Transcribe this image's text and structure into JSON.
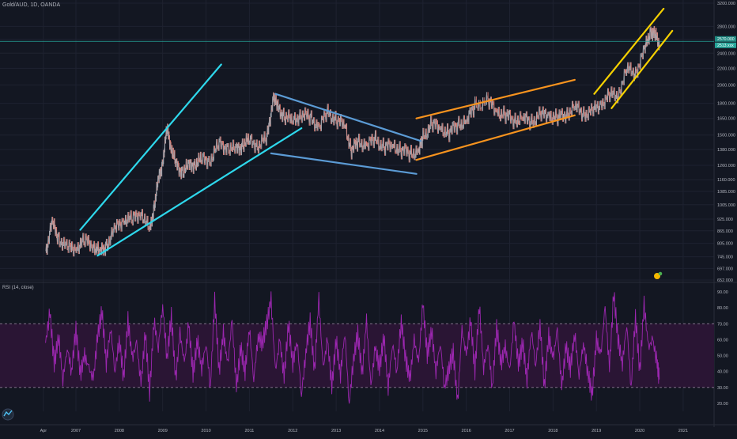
{
  "header": {
    "symbol_title": "Gold/AUD, 1D, OANDA"
  },
  "rsi_panel": {
    "title": "RSI (14, close)"
  },
  "colors": {
    "background": "#131722",
    "grid": "#1e2230",
    "axis_text": "#b2b5be",
    "candle_up": "#a5a9b1",
    "candle_down": "#e07a6f",
    "price_line": "#26a69a",
    "channel_cyan": "#2ed8ec",
    "channel_steel": "#5b9bd5",
    "channel_orange": "#f7931e",
    "channel_yellow": "#f5d000",
    "rsi_line": "#9c27b0",
    "rsi_band": "#2a1534",
    "rsi_band_border": "#8d7c95"
  },
  "icons": {
    "chart_badge": "tradingview-idea-icon",
    "logo": "tradingview-logo-icon"
  },
  "chart_data": [
    {
      "type": "line",
      "title": "Gold/AUD, 1D, OANDA",
      "y_scale": "log",
      "ylim": [
        652,
        3200
      ],
      "y_ticks": [
        "3200.000",
        "2800.000",
        "2600.000",
        "2400.000",
        "2200.000",
        "2000.000",
        "1800.000",
        "1650.000",
        "1500.000",
        "1380.000",
        "1260.000",
        "1160.000",
        "1085.000",
        "1005.000",
        "925.000",
        "865.000",
        "805.000",
        "745.000",
        "697.000",
        "652.000"
      ],
      "x_ticks": [
        "Apr",
        "2007",
        "2008",
        "2009",
        "2010",
        "2011",
        "2012",
        "2013",
        "2014",
        "2015",
        "2016",
        "2017",
        "2018",
        "2019",
        "2020",
        "2021"
      ],
      "current_price_labels": [
        "2570.000",
        "2513.xxx"
      ],
      "series": [
        {
          "x": [
            2006.3,
            2006.45,
            2006.6,
            2006.8,
            2007.0,
            2007.2,
            2007.4,
            2007.55,
            2007.7,
            2007.9,
            2008.1,
            2008.3,
            2008.5,
            2008.7,
            2008.8,
            2008.9,
            2009.0,
            2009.1,
            2009.2,
            2009.3,
            2009.45,
            2009.6,
            2009.75,
            2009.9,
            2010.1,
            2010.3,
            2010.5,
            2010.7,
            2010.85,
            2011.0,
            2011.2,
            2011.4,
            2011.55,
            2011.65,
            2011.8,
            2012.0,
            2012.2,
            2012.4,
            2012.6,
            2012.8,
            2013.0,
            2013.2,
            2013.35,
            2013.5,
            2013.7,
            2013.9,
            2014.1,
            2014.3,
            2014.5,
            2014.7,
            2014.9,
            2015.0,
            2015.2,
            2015.4,
            2015.6,
            2015.8,
            2016.0,
            2016.2,
            2016.5,
            2016.7,
            2016.9,
            2017.1,
            2017.3,
            2017.5,
            2017.7,
            2017.9,
            2018.1,
            2018.3,
            2018.5,
            2018.7,
            2018.9,
            2019.1,
            2019.3,
            2019.5,
            2019.7,
            2019.9,
            2020.1,
            2020.25,
            2020.35,
            2020.45
          ],
          "y": [
            770,
            905,
            830,
            780,
            790,
            815,
            800,
            760,
            800,
            870,
            930,
            920,
            970,
            860,
            1000,
            1150,
            1300,
            1550,
            1400,
            1260,
            1220,
            1250,
            1280,
            1300,
            1310,
            1420,
            1400,
            1370,
            1430,
            1450,
            1420,
            1470,
            1880,
            1750,
            1680,
            1620,
            1700,
            1650,
            1580,
            1700,
            1640,
            1580,
            1380,
            1440,
            1420,
            1460,
            1400,
            1410,
            1380,
            1350,
            1370,
            1480,
            1600,
            1560,
            1520,
            1600,
            1620,
            1780,
            1820,
            1720,
            1680,
            1640,
            1650,
            1620,
            1680,
            1690,
            1650,
            1700,
            1760,
            1700,
            1710,
            1800,
            1880,
            1900,
            2180,
            2150,
            2420,
            2750,
            2650,
            2550
          ]
        }
      ],
      "annotations": [
        {
          "name": "cyan-channel-upper",
          "color": "#2ed8ec",
          "x": [
            2007.1,
            2010.35
          ],
          "y": [
            870,
            2250
          ]
        },
        {
          "name": "cyan-channel-lower",
          "color": "#2ed8ec",
          "x": [
            2007.5,
            2012.2
          ],
          "y": [
            750,
            1560
          ]
        },
        {
          "name": "steel-wedge-upper",
          "color": "#5b9bd5",
          "x": [
            2011.6,
            2014.95
          ],
          "y": [
            1900,
            1450
          ]
        },
        {
          "name": "steel-wedge-lower",
          "color": "#5b9bd5",
          "x": [
            2011.5,
            2014.85
          ],
          "y": [
            1350,
            1200
          ]
        },
        {
          "name": "orange-channel-upper",
          "color": "#f7931e",
          "x": [
            2014.85,
            2018.5
          ],
          "y": [
            1650,
            2060
          ]
        },
        {
          "name": "orange-channel-lower",
          "color": "#f7931e",
          "x": [
            2014.85,
            2018.5
          ],
          "y": [
            1300,
            1680
          ]
        },
        {
          "name": "yellow-channel-upper",
          "color": "#f5d000",
          "x": [
            2018.95,
            2020.55
          ],
          "y": [
            1900,
            3100
          ]
        },
        {
          "name": "yellow-channel-lower",
          "color": "#f5d000",
          "x": [
            2019.35,
            2020.75
          ],
          "y": [
            1750,
            2730
          ]
        }
      ]
    },
    {
      "type": "line",
      "title": "RSI (14, close)",
      "ylim": [
        15,
        95
      ],
      "y_ticks": [
        "90.00",
        "80.00",
        "70.00",
        "60.00",
        "50.00",
        "40.00",
        "30.00",
        "20.00"
      ],
      "bands": {
        "upper": 70,
        "lower": 30
      },
      "series": [
        {
          "name": "RSI",
          "x": [
            2006.3,
            2006.4,
            2006.5,
            2006.6,
            2006.7,
            2006.8,
            2006.9,
            2007.0,
            2007.1,
            2007.2,
            2007.3,
            2007.4,
            2007.5,
            2007.6,
            2007.7,
            2007.8,
            2007.9,
            2008.0,
            2008.1,
            2008.2,
            2008.3,
            2008.4,
            2008.5,
            2008.6,
            2008.7,
            2008.8,
            2008.9,
            2009.0,
            2009.1,
            2009.2,
            2009.3,
            2009.4,
            2009.5,
            2009.6,
            2009.7,
            2009.8,
            2009.9,
            2010.0,
            2010.1,
            2010.2,
            2010.3,
            2010.4,
            2010.5,
            2010.6,
            2010.7,
            2010.8,
            2010.9,
            2011.0,
            2011.1,
            2011.2,
            2011.3,
            2011.4,
            2011.5,
            2011.6,
            2011.7,
            2011.8,
            2011.9,
            2012.0,
            2012.1,
            2012.2,
            2012.3,
            2012.4,
            2012.5,
            2012.6,
            2012.7,
            2012.8,
            2012.9,
            2013.0,
            2013.1,
            2013.2,
            2013.3,
            2013.4,
            2013.5,
            2013.6,
            2013.7,
            2013.8,
            2013.9,
            2014.0,
            2014.1,
            2014.2,
            2014.3,
            2014.4,
            2014.5,
            2014.6,
            2014.7,
            2014.8,
            2014.9,
            2015.0,
            2015.1,
            2015.2,
            2015.3,
            2015.4,
            2015.5,
            2015.6,
            2015.7,
            2015.8,
            2015.9,
            2016.0,
            2016.1,
            2016.2,
            2016.3,
            2016.4,
            2016.5,
            2016.6,
            2016.7,
            2016.8,
            2016.9,
            2017.0,
            2017.1,
            2017.2,
            2017.3,
            2017.4,
            2017.5,
            2017.6,
            2017.7,
            2017.8,
            2017.9,
            2018.0,
            2018.1,
            2018.2,
            2018.3,
            2018.4,
            2018.5,
            2018.6,
            2018.7,
            2018.8,
            2018.9,
            2019.0,
            2019.1,
            2019.2,
            2019.3,
            2019.4,
            2019.5,
            2019.6,
            2019.7,
            2019.8,
            2019.9,
            2020.0,
            2020.1,
            2020.2,
            2020.3,
            2020.4,
            2020.45
          ],
          "y": [
            58,
            77,
            45,
            62,
            35,
            55,
            40,
            67,
            38,
            50,
            42,
            35,
            62,
            78,
            45,
            68,
            40,
            60,
            36,
            72,
            48,
            58,
            32,
            64,
            27,
            72,
            55,
            82,
            48,
            75,
            35,
            64,
            45,
            70,
            38,
            60,
            42,
            58,
            30,
            86,
            40,
            64,
            44,
            72,
            30,
            55,
            40,
            68,
            35,
            62,
            58,
            70,
            85,
            40,
            60,
            36,
            70,
            45,
            60,
            25,
            52,
            72,
            40,
            85,
            42,
            60,
            30,
            60,
            38,
            65,
            20,
            48,
            64,
            38,
            72,
            30,
            55,
            42,
            62,
            30,
            58,
            40,
            72,
            48,
            35,
            60,
            45,
            83,
            50,
            66,
            40,
            58,
            30,
            42,
            52,
            20,
            66,
            50,
            72,
            40,
            82,
            42,
            58,
            30,
            68,
            45,
            55,
            40,
            72,
            44,
            58,
            35,
            66,
            44,
            70,
            30,
            62,
            48,
            66,
            30,
            56,
            42,
            64,
            38,
            58,
            40,
            25,
            60,
            50,
            80,
            42,
            89,
            60,
            45,
            70,
            30,
            75,
            40,
            82,
            55,
            60,
            45,
            35
          ]
        }
      ]
    }
  ]
}
